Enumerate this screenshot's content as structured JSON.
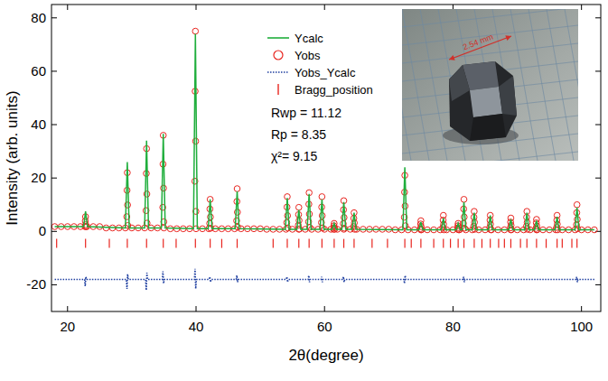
{
  "chart_data": {
    "type": "scatter",
    "x_label": "2θ(degree)",
    "y_label": "Intensity (arb. units)",
    "xlim": [
      17.5,
      103
    ],
    "ylim": [
      -30,
      85
    ],
    "xticks": [
      20,
      40,
      60,
      80,
      100
    ],
    "yticks": [
      -20,
      0,
      20,
      40,
      60,
      80
    ],
    "grid": false,
    "legend": "top",
    "annotations": [
      {
        "text": "Rwp = 11.12"
      },
      {
        "text": "Rp = 8.35"
      },
      {
        "text": "χ²= 9.15"
      }
    ],
    "inset": {
      "label": "2.54 mm"
    },
    "series": [
      {
        "name": "Ycalc",
        "type": "line",
        "color": "#1fae3c",
        "line_style": "solid",
        "x": [
          18,
          22.5,
          22.8,
          23.1,
          29.0,
          29.3,
          29.6,
          32.0,
          32.3,
          32.6,
          34.6,
          34.9,
          35.2,
          39.6,
          39.9,
          40.2,
          41.9,
          42.2,
          42.5,
          46.1,
          46.4,
          46.7,
          53.9,
          54.2,
          54.5,
          55.7,
          56.0,
          56.3,
          57.3,
          57.6,
          57.9,
          59.3,
          59.6,
          59.9,
          61.2,
          61.5,
          61.8,
          62.7,
          63.0,
          63.3,
          64.3,
          64.6,
          64.9,
          72.2,
          72.5,
          72.8,
          74.7,
          75.0,
          75.3,
          78.2,
          78.5,
          78.8,
          80.5,
          80.8,
          81.1,
          81.4,
          81.7,
          82.0,
          83.0,
          83.3,
          83.6,
          85.5,
          85.8,
          86.1,
          88.7,
          89.0,
          89.3,
          91.2,
          91.5,
          91.8,
          92.7,
          93.0,
          93.3,
          95.9,
          96.2,
          96.5,
          99.0,
          99.3,
          99.6,
          102
        ],
        "values": [
          1.8,
          1.8,
          7.5,
          1.8,
          1.3,
          26,
          1.3,
          1.3,
          34,
          1.3,
          1.3,
          36.5,
          1.3,
          1,
          74,
          1,
          1,
          12,
          1,
          1,
          15,
          1,
          0.8,
          12.5,
          0.8,
          0.8,
          8,
          0.8,
          0.8,
          14,
          0.8,
          0.8,
          12,
          0.8,
          0.8,
          3,
          0.8,
          0.8,
          11,
          0.8,
          0.8,
          7,
          0.8,
          0.6,
          24,
          0.6,
          0.6,
          3.5,
          0.6,
          0.6,
          5,
          0.6,
          0.6,
          3,
          0.6,
          0.6,
          11,
          0.6,
          0.6,
          7,
          0.6,
          0.6,
          6,
          0.6,
          0.6,
          4.5,
          0.6,
          0.6,
          7,
          0.6,
          0.6,
          4,
          0.6,
          0.6,
          5.5,
          0.6,
          0.6,
          9,
          0.6,
          0.6
        ]
      },
      {
        "name": "Yobs",
        "type": "scatter",
        "color": "#e8251f",
        "marker": "circle",
        "x": [
          18,
          19,
          20,
          21,
          22,
          23,
          24,
          25,
          26,
          27,
          28,
          29,
          30,
          31,
          32,
          33,
          34,
          35,
          36,
          37,
          38,
          39,
          40,
          41,
          42,
          43,
          44,
          45,
          46,
          47,
          48,
          49,
          50,
          51,
          52,
          53,
          54,
          55,
          56,
          57,
          58,
          59,
          60,
          61,
          62,
          63,
          64,
          65,
          66,
          67,
          68,
          69,
          70,
          71,
          72,
          73,
          74,
          75,
          76,
          77,
          78,
          79,
          80,
          81,
          82,
          83,
          84,
          85,
          86,
          87,
          88,
          89,
          90,
          91,
          92,
          93,
          94,
          95,
          96,
          97,
          98,
          99,
          100,
          101,
          102,
          22.8,
          22.76,
          22.84,
          22.72,
          22.88,
          29.3,
          29.26,
          29.34,
          29.22,
          29.38,
          32.3,
          32.26,
          32.34,
          32.22,
          32.38,
          34.9,
          34.86,
          34.94,
          34.82,
          34.98,
          39.9,
          39.86,
          39.94,
          39.82,
          39.98,
          42.2,
          42.16,
          42.24,
          42.12,
          42.28,
          46.4,
          46.36,
          46.44,
          46.32,
          46.48,
          54.2,
          54.16,
          54.24,
          54.12,
          54.28,
          56.0,
          55.96,
          56.04,
          55.92,
          56.08,
          57.6,
          57.56,
          57.64,
          57.52,
          57.68,
          59.6,
          59.56,
          59.64,
          59.52,
          59.68,
          61.5,
          61.46,
          61.54,
          61.42,
          61.58,
          63.0,
          62.96,
          63.04,
          62.92,
          63.08,
          64.6,
          64.56,
          64.64,
          64.52,
          64.68,
          72.5,
          72.46,
          72.54,
          72.42,
          72.58,
          75.0,
          74.96,
          75.04,
          74.92,
          75.08,
          78.5,
          78.46,
          78.54,
          78.42,
          78.58,
          80.8,
          80.76,
          80.84,
          80.72,
          80.88,
          81.7,
          81.66,
          81.74,
          81.62,
          81.78,
          83.3,
          83.26,
          83.34,
          83.22,
          83.38,
          85.8,
          85.76,
          85.84,
          85.72,
          85.88,
          89.0,
          88.96,
          89.04,
          88.92,
          89.08,
          91.5,
          91.46,
          91.54,
          91.42,
          91.58,
          93.0,
          92.96,
          93.04,
          92.92,
          93.08,
          96.2,
          96.16,
          96.24,
          96.12,
          96.28,
          99.3,
          99.26,
          99.34,
          99.22,
          99.38
        ],
        "values": [
          1.8,
          1.8,
          1.8,
          1.8,
          1.8,
          1.8,
          1.8,
          1.8,
          1.3,
          1.3,
          1.3,
          1.3,
          1.3,
          1.3,
          1.3,
          1.3,
          1.3,
          1.3,
          1,
          1,
          1,
          1,
          1,
          1,
          1,
          1,
          1,
          1,
          1,
          1,
          1,
          1,
          1,
          0.8,
          0.8,
          0.8,
          0.8,
          0.8,
          0.8,
          0.8,
          0.8,
          0.8,
          0.8,
          0.8,
          0.8,
          0.8,
          0.8,
          0.8,
          0.8,
          0.8,
          0.8,
          0.8,
          0.8,
          0.6,
          0.6,
          0.6,
          0.6,
          0.6,
          0.6,
          0.6,
          0.6,
          0.6,
          0.6,
          0.6,
          0.6,
          0.6,
          0.6,
          0.6,
          0.6,
          0.6,
          0.6,
          0.6,
          0.6,
          0.6,
          0.6,
          0.6,
          0.6,
          0.6,
          0.6,
          0.6,
          0.6,
          0.6,
          0.6,
          0.6,
          0.6,
          5.5,
          3.9,
          2.5,
          1.8,
          1.8,
          22,
          15.4,
          9.9,
          5.5,
          2.2,
          31,
          21.7,
          14,
          7.8,
          3.1,
          36,
          25.2,
          16.2,
          9,
          3.6,
          75,
          52.5,
          33.8,
          18.8,
          7.5,
          12,
          8.4,
          5.4,
          3,
          1.2,
          16,
          11.2,
          7.2,
          4,
          1.6,
          13,
          9.1,
          5.9,
          3.3,
          1.3,
          9,
          6.3,
          4.1,
          2.3,
          0.9,
          14.5,
          10.2,
          6.5,
          3.6,
          1.5,
          13,
          9.1,
          5.9,
          3.3,
          1.3,
          3,
          2.1,
          1.4,
          0.8,
          0.8,
          11.5,
          8.1,
          5.2,
          2.9,
          1.2,
          7,
          4.9,
          3.2,
          1.8,
          0.8,
          21,
          14.7,
          9.5,
          5.3,
          2.1,
          4,
          2.8,
          1.8,
          1,
          0.6,
          6,
          4.2,
          2.7,
          1.5,
          0.6,
          3,
          2.1,
          1.4,
          0.8,
          0.6,
          12,
          8.4,
          5.4,
          3,
          1.2,
          7.5,
          5.3,
          3.4,
          1.9,
          0.8,
          6,
          4.2,
          2.7,
          1.5,
          0.6,
          5,
          3.5,
          2.3,
          1.3,
          0.6,
          7.5,
          5.3,
          3.4,
          1.9,
          0.8,
          4.5,
          3.2,
          2,
          1.1,
          0.6,
          6,
          4.2,
          2.7,
          1.5,
          0.6,
          10,
          7,
          4.5,
          2.5,
          1
        ]
      },
      {
        "name": "Yobs_Ycalc",
        "type": "line",
        "color": "#1f3fa0",
        "line_style": "dotted",
        "x": [
          18,
          22.65,
          22.75,
          22.85,
          22.95,
          29.15,
          29.25,
          29.35,
          29.45,
          32.15,
          32.25,
          32.35,
          32.45,
          34.75,
          34.85,
          34.95,
          35.05,
          39.75,
          39.85,
          39.95,
          40.05,
          42.05,
          42.15,
          42.25,
          42.35,
          46.25,
          46.35,
          46.45,
          46.55,
          54.05,
          54.15,
          54.25,
          54.35,
          57.45,
          57.55,
          57.65,
          57.75,
          59.45,
          59.55,
          59.65,
          59.75,
          62.85,
          62.95,
          63.05,
          63.15,
          72.35,
          72.45,
          72.55,
          72.65,
          81.55,
          81.65,
          81.75,
          81.85,
          99.15,
          99.25,
          99.35,
          99.45,
          102
        ],
        "values": [
          -18,
          -18,
          -20.5,
          -17,
          -18,
          -18,
          -21.5,
          -16,
          -18,
          -18,
          -22,
          -15.5,
          -18,
          -18,
          -15,
          -19.5,
          -18,
          -18,
          -14,
          -21.5,
          -18,
          -18,
          -17,
          -19,
          -18,
          -18,
          -16.5,
          -19,
          -18,
          -18,
          -17,
          -19,
          -18,
          -18,
          -16.5,
          -19,
          -18,
          -18,
          -17,
          -19,
          -18,
          -18,
          -17,
          -19,
          -18,
          -18,
          -19.5,
          -16.5,
          -18,
          -18,
          -17,
          -19,
          -18,
          -18,
          -17,
          -19,
          -18,
          -18
        ]
      },
      {
        "name": "Bragg_position",
        "type": "scatter",
        "color": "#e8251f",
        "marker": "tick",
        "x": [
          18.3,
          22.8,
          26.5,
          29.3,
          32.3,
          34.9,
          36.9,
          39.9,
          42.2,
          44.0,
          46.4,
          52.0,
          54.2,
          56.0,
          57.6,
          59.6,
          61.5,
          63.0,
          64.6,
          67.4,
          69.8,
          72.5,
          73.5,
          75.0,
          77.0,
          78.5,
          79.6,
          80.8,
          81.7,
          83.3,
          84.5,
          85.8,
          87.1,
          88.0,
          89.0,
          90.5,
          91.5,
          93.0,
          94.5,
          96.2,
          97.0,
          98.5,
          99.3
        ],
        "values": [
          -4.5,
          -4.5,
          -4.5,
          -4.5,
          -4.5,
          -4.5,
          -4.5,
          -4.5,
          -4.5,
          -4.5,
          -4.5,
          -4.5,
          -4.5,
          -4.5,
          -4.5,
          -4.5,
          -4.5,
          -4.5,
          -4.5,
          -4.5,
          -4.5,
          -4.5,
          -4.5,
          -4.5,
          -4.5,
          -4.5,
          -4.5,
          -4.5,
          -4.5,
          -4.5,
          -4.5,
          -4.5,
          -4.5,
          -4.5,
          -4.5,
          -4.5,
          -4.5,
          -4.5,
          -4.5,
          -4.5,
          -4.5,
          -4.5,
          -4.5
        ]
      }
    ]
  }
}
